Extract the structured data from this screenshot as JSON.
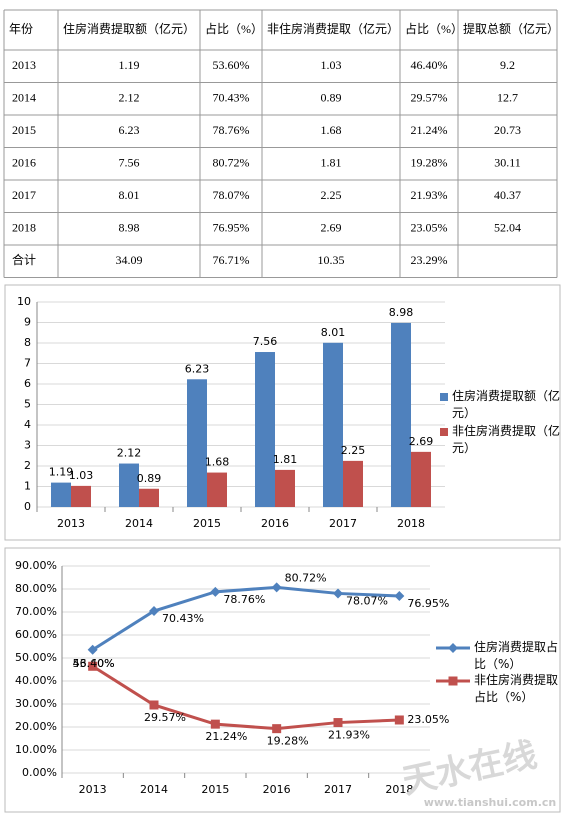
{
  "table": {
    "header": [
      "年份",
      "住房消费提取额（亿元）",
      "占比（%）",
      "非住房消费提取（亿元）",
      "占比（%）",
      "提取总额（亿元）"
    ],
    "rows": [
      [
        "2013",
        "1.19",
        "53.60%",
        "1.03",
        "46.40%",
        "9.2"
      ],
      [
        "2014",
        "2.12",
        "70.43%",
        "0.89",
        "29.57%",
        "12.7"
      ],
      [
        "2015",
        "6.23",
        "78.76%",
        "1.68",
        "21.24%",
        "20.73"
      ],
      [
        "2016",
        "7.56",
        "80.72%",
        "1.81",
        "19.28%",
        "30.11"
      ],
      [
        "2017",
        "8.01",
        "78.07%",
        "2.25",
        "21.93%",
        "40.37"
      ],
      [
        "2018",
        "8.98",
        "76.95%",
        "2.69",
        "23.05%",
        "52.04"
      ]
    ],
    "total": [
      "合计",
      "34.09",
      "76.71%",
      "10.35",
      "23.29%"
    ]
  },
  "chart_data": [
    {
      "type": "bar",
      "categories": [
        "2013",
        "2014",
        "2015",
        "2016",
        "2017",
        "2018"
      ],
      "series": [
        {
          "name": "住房消费提取额（亿元）",
          "color": "#4f81bd",
          "values": [
            1.19,
            2.12,
            6.23,
            7.56,
            8.01,
            8.98
          ]
        },
        {
          "name": "非住房消费提取（亿元）",
          "color": "#c0504d",
          "values": [
            1.03,
            0.89,
            1.68,
            1.81,
            2.25,
            2.69
          ]
        }
      ],
      "ylim": [
        0,
        10
      ],
      "yticks": [
        0,
        1,
        2,
        3,
        4,
        5,
        6,
        7,
        8,
        9,
        10
      ],
      "grid": true,
      "legend": "right"
    },
    {
      "type": "line",
      "categories": [
        "2013",
        "2014",
        "2015",
        "2016",
        "2017",
        "2018"
      ],
      "series": [
        {
          "name": "住房消费提取占比（%）",
          "color": "#4f81bd",
          "marker": "diamond",
          "values": [
            53.6,
            70.43,
            78.76,
            80.72,
            78.07,
            76.95
          ],
          "value_labels": [
            "53.60%",
            "70.43%",
            "78.76%",
            "80.72%",
            "78.07%",
            "76.95%"
          ]
        },
        {
          "name": "非住房消费提取占比（%）",
          "color": "#c0504d",
          "marker": "square",
          "values": [
            46.4,
            29.57,
            21.24,
            19.28,
            21.93,
            23.05
          ],
          "value_labels": [
            "46.40%",
            "29.57%",
            "21.24%",
            "19.28%",
            "21.93%",
            "23.05%"
          ]
        }
      ],
      "ylim": [
        0,
        90
      ],
      "yticks": [
        {
          "value": 0,
          "label": "0.00%"
        },
        {
          "value": 10,
          "label": "10.00%"
        },
        {
          "value": 20,
          "label": "20.00%"
        },
        {
          "value": 30,
          "label": "30.00%"
        },
        {
          "value": 40,
          "label": "40.00%"
        },
        {
          "value": 50,
          "label": "50.00%"
        },
        {
          "value": 60,
          "label": "60.00%"
        },
        {
          "value": 70,
          "label": "70.00%"
        },
        {
          "value": 80,
          "label": "80.00%"
        },
        {
          "value": 90,
          "label": "90.00%"
        }
      ],
      "grid": true,
      "legend": "right"
    }
  ],
  "watermark": {
    "text": "天水在线",
    "url": "www.tianshui.com.cn"
  }
}
